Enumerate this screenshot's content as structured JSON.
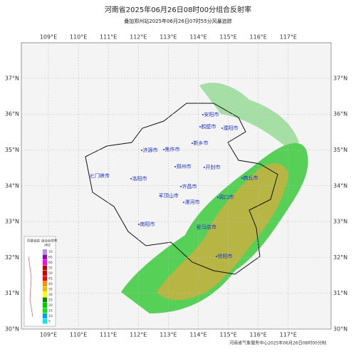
{
  "header": {
    "title": "河南省2025年06月26日08时00分组合反射率",
    "subtitle": "叠加郑州站2025年06月26日07时55分风暴追踪"
  },
  "map": {
    "lon_ticks": [
      {
        "value": 109,
        "label": "109°E"
      },
      {
        "value": 110,
        "label": "110°E"
      },
      {
        "value": 111,
        "label": "111°E"
      },
      {
        "value": 112,
        "label": "112°E"
      },
      {
        "value": 113,
        "label": "113°E"
      },
      {
        "value": 114,
        "label": "114°E"
      },
      {
        "value": 115,
        "label": "115°E"
      },
      {
        "value": 116,
        "label": "116°E"
      },
      {
        "value": 117,
        "label": "117°E"
      }
    ],
    "lat_ticks": [
      {
        "value": 30,
        "label": "30°N"
      },
      {
        "value": 31,
        "label": "31°N"
      },
      {
        "value": 32,
        "label": "32°N"
      },
      {
        "value": 33,
        "label": "33°N"
      },
      {
        "value": 34,
        "label": "34°N"
      },
      {
        "value": 35,
        "label": "35°N"
      },
      {
        "value": 36,
        "label": "36°N"
      },
      {
        "value": 37,
        "label": "37°N"
      }
    ],
    "cities": [
      "安阳市",
      "鹤壁市",
      "濮阳市",
      "新乡市",
      "济源市",
      "焦作市",
      "郑州市",
      "开封市",
      "三门峡市",
      "洛阳市",
      "商丘市",
      "许昌市",
      "平顶山市",
      "周口市",
      "漯河市",
      "南阳市",
      "驻马店市",
      "信阳市"
    ]
  },
  "legend": {
    "storm_title": "风暴追踪",
    "title": "组合反射率",
    "unit": "dBZ",
    "levels": [
      70,
      65,
      60,
      55,
      50,
      45,
      40,
      35,
      30,
      25,
      20,
      15,
      10,
      5
    ],
    "colors": [
      "#ad90f0",
      "#9600b4",
      "#ff00f0",
      "#c00000",
      "#d60000",
      "#ff0000",
      "#ff9000",
      "#e7c000",
      "#ffff00",
      "#009000",
      "#00c800",
      "#00ec00",
      "#01a0f6",
      "#00ecec"
    ]
  },
  "footer": "河南省气象服务中心2025年06月26日08时00分制"
}
